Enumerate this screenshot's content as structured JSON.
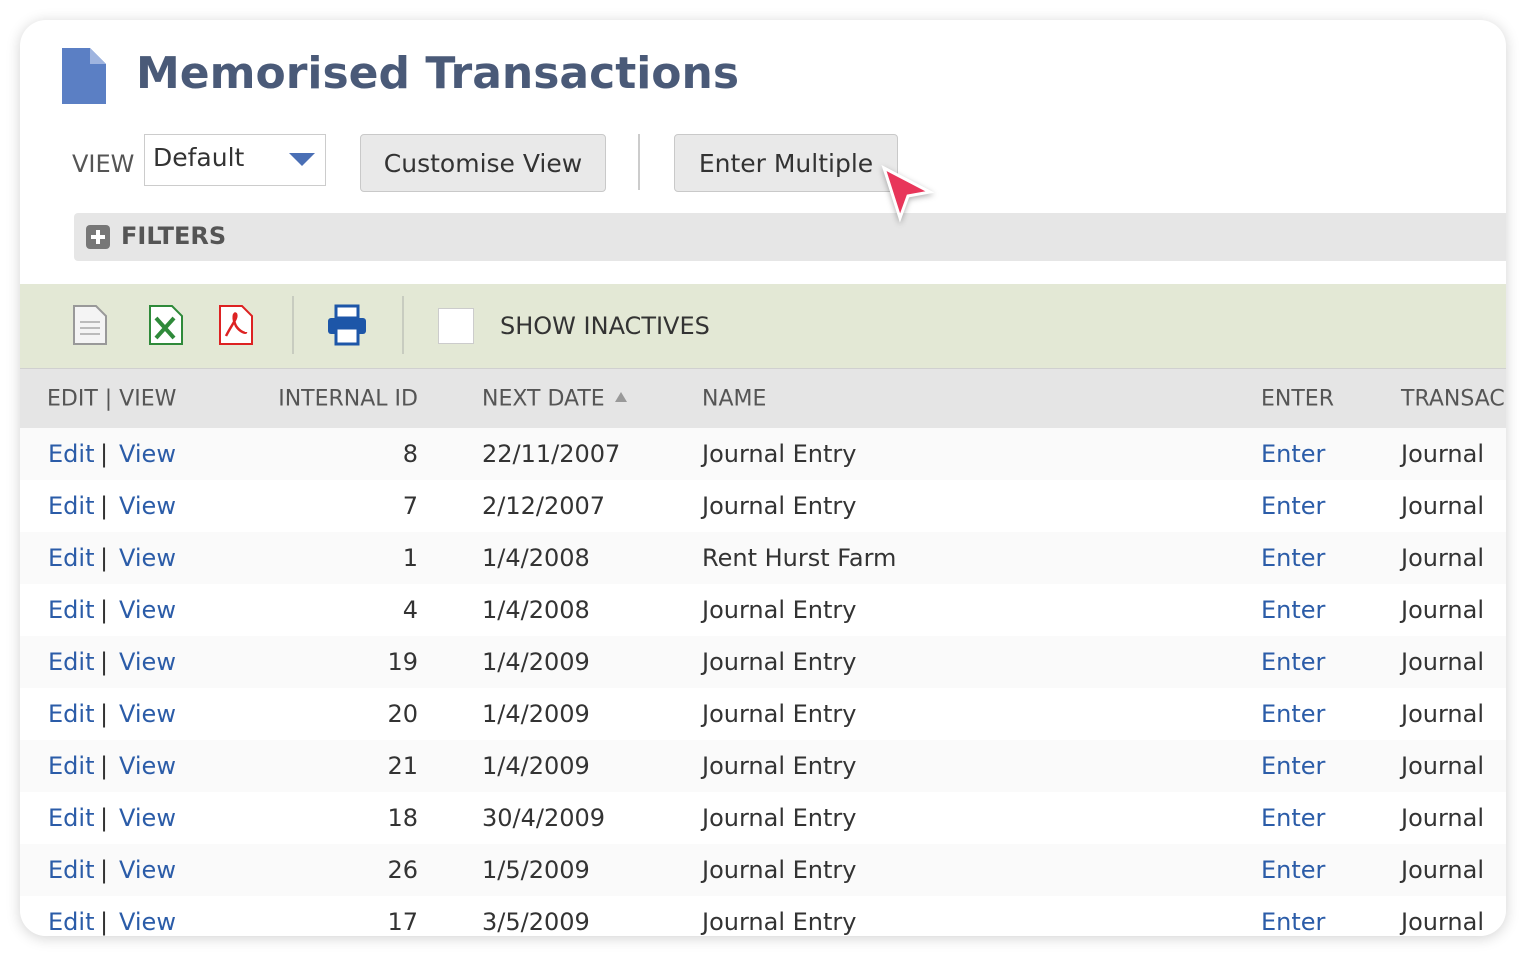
{
  "header": {
    "title": "Memorised Transactions"
  },
  "toolbar": {
    "view_label": "VIEW",
    "view_value": "Default",
    "customise_button": "Customise View",
    "enter_multiple_button": "Enter Multiple"
  },
  "filters": {
    "label": "FILTERS"
  },
  "actions": {
    "show_inactives": "SHOW INACTIVES"
  },
  "table": {
    "columns": [
      "EDIT | VIEW",
      "INTERNAL ID",
      "NEXT DATE",
      "NAME",
      "ENTER",
      "TRANSAC"
    ],
    "separator": "|",
    "rows": [
      {
        "edit": "Edit",
        "view": "View",
        "id": "8",
        "date": "22/11/2007",
        "name": "Journal Entry",
        "enter": "Enter",
        "type": "Journal"
      },
      {
        "edit": "Edit",
        "view": "View",
        "id": "7",
        "date": "2/12/2007",
        "name": "Journal Entry",
        "enter": "Enter",
        "type": "Journal"
      },
      {
        "edit": "Edit",
        "view": "View",
        "id": "1",
        "date": "1/4/2008",
        "name": "Rent Hurst Farm",
        "enter": "Enter",
        "type": "Journal"
      },
      {
        "edit": "Edit",
        "view": "View",
        "id": "4",
        "date": "1/4/2008",
        "name": "Journal Entry",
        "enter": "Enter",
        "type": "Journal"
      },
      {
        "edit": "Edit",
        "view": "View",
        "id": "19",
        "date": "1/4/2009",
        "name": "Journal Entry",
        "enter": "Enter",
        "type": "Journal"
      },
      {
        "edit": "Edit",
        "view": "View",
        "id": "20",
        "date": "1/4/2009",
        "name": "Journal Entry",
        "enter": "Enter",
        "type": "Journal"
      },
      {
        "edit": "Edit",
        "view": "View",
        "id": "21",
        "date": "1/4/2009",
        "name": "Journal Entry",
        "enter": "Enter",
        "type": "Journal"
      },
      {
        "edit": "Edit",
        "view": "View",
        "id": "18",
        "date": "30/4/2009",
        "name": "Journal Entry",
        "enter": "Enter",
        "type": "Journal"
      },
      {
        "edit": "Edit",
        "view": "View",
        "id": "26",
        "date": "1/5/2009",
        "name": "Journal Entry",
        "enter": "Enter",
        "type": "Journal"
      },
      {
        "edit": "Edit",
        "view": "View",
        "id": "17",
        "date": "3/5/2009",
        "name": "Journal Entry",
        "enter": "Enter",
        "type": "Journal"
      }
    ]
  }
}
